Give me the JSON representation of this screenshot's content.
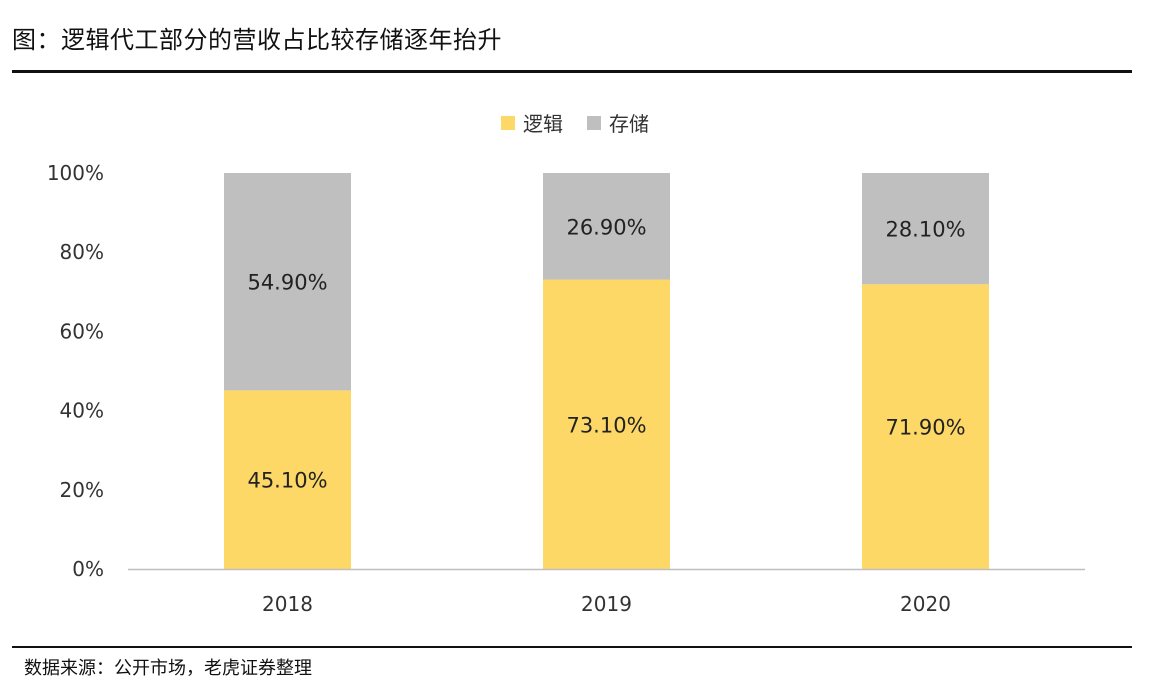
{
  "title": "图：逻辑代工部分的营收占比较存储逐年抬升",
  "source": "数据来源：公开市场，老虎证券整理",
  "colors": {
    "logic": "#FDD866",
    "storage": "#BFBFBF",
    "axis": "#BFBFBF"
  },
  "chart_data": {
    "type": "bar",
    "stacked": true,
    "percent": true,
    "categories": [
      "2018",
      "2019",
      "2020"
    ],
    "series": [
      {
        "name": "逻辑",
        "values": [
          45.1,
          73.1,
          71.9
        ],
        "labels": [
          "45.10%",
          "73.10%",
          "71.90%"
        ]
      },
      {
        "name": "存储",
        "values": [
          54.9,
          26.9,
          28.1
        ],
        "labels": [
          "54.90%",
          "26.90%",
          "28.10%"
        ]
      }
    ],
    "ylim": [
      0,
      100
    ],
    "yticks": [
      "0%",
      "20%",
      "40%",
      "60%",
      "80%",
      "100%"
    ],
    "legend": "top-center",
    "grid": false
  }
}
